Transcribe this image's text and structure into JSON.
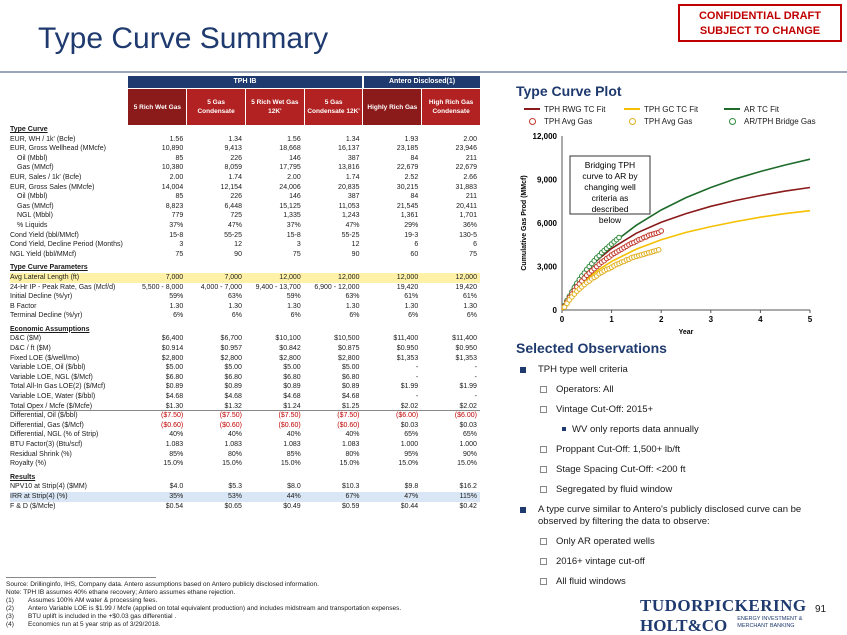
{
  "title": "Type Curve Summary",
  "confidential": [
    "CONFIDENTIAL DRAFT",
    "SUBJECT TO CHANGE"
  ],
  "table": {
    "group_headers": [
      "TPH IB",
      "Antero Disclosed(1)"
    ],
    "columns": [
      "5 Rich Wet Gas",
      "5 Gas Condensate",
      "5 Rich Wet Gas 12K'",
      "5 Gas Condensate 12K'",
      "Highly Rich Gas",
      "High Rich Gas Condensate"
    ],
    "sections": [
      {
        "name": "Type Curve",
        "rows": [
          {
            "label": "EUR, WH / 1k' (Bcfe)",
            "values": [
              "1.56",
              "1.34",
              "1.56",
              "1.34",
              "1.93",
              "2.00"
            ]
          },
          {
            "label": "EUR, Gross Wellhead (MMcfe)",
            "values": [
              "10,890",
              "9,413",
              "18,668",
              "16,137",
              "23,185",
              "23,946"
            ]
          },
          {
            "label": "Oil (Mbbl)",
            "indent": true,
            "values": [
              "85",
              "226",
              "146",
              "387",
              "84",
              "211"
            ]
          },
          {
            "label": "Gas (MMcf)",
            "indent": true,
            "values": [
              "10,380",
              "8,059",
              "17,795",
              "13,816",
              "22,679",
              "22,679"
            ]
          },
          {
            "label": "EUR, Sales / 1k' (Bcfe)",
            "values": [
              "2.00",
              "1.74",
              "2.00",
              "1.74",
              "2.52",
              "2.66"
            ]
          },
          {
            "label": "EUR, Gross Sales (MMcfe)",
            "values": [
              "14,004",
              "12,154",
              "24,006",
              "20,835",
              "30,215",
              "31,883"
            ]
          },
          {
            "label": "Oil (Mbbl)",
            "indent": true,
            "values": [
              "85",
              "226",
              "146",
              "387",
              "84",
              "211"
            ]
          },
          {
            "label": "Gas (MMcf)",
            "indent": true,
            "values": [
              "8,823",
              "6,448",
              "15,125",
              "11,053",
              "21,545",
              "20,411"
            ]
          },
          {
            "label": "NGL (Mbbl)",
            "indent": true,
            "values": [
              "779",
              "725",
              "1,335",
              "1,243",
              "1,361",
              "1,701"
            ]
          },
          {
            "label": "% Liquids",
            "indent": true,
            "values": [
              "37%",
              "47%",
              "37%",
              "47%",
              "29%",
              "36%"
            ]
          },
          {
            "label": "Cond Yield (bbl/MMcf)",
            "values": [
              "15-8",
              "55-25",
              "15-8",
              "55-25",
              "19-3",
              "130-5"
            ]
          },
          {
            "label": "Cond Yield, Decline Period (Months)",
            "values": [
              "3",
              "12",
              "3",
              "12",
              "6",
              "6"
            ]
          },
          {
            "label": "NGL Yield (bbl/MMcf)",
            "values": [
              "75",
              "90",
              "75",
              "90",
              "60",
              "75"
            ]
          }
        ]
      },
      {
        "name": "Type Curve Parameters",
        "rows": [
          {
            "label": "Avg Lateral Length (ft)",
            "highlight": "yellow",
            "values": [
              "7,000",
              "7,000",
              "12,000",
              "12,000",
              "12,000",
              "12,000"
            ]
          },
          {
            "label": "24-Hr IP - Peak Rate, Gas (Mcf/d)",
            "values": [
              "5,500 - 8,000",
              "4,000 - 7,000",
              "9,400 - 13,700",
              "6,900 - 12,000",
              "19,420",
              "19,420"
            ]
          },
          {
            "label": "Initial Decline (%/yr)",
            "values": [
              "59%",
              "63%",
              "59%",
              "63%",
              "61%",
              "61%"
            ]
          },
          {
            "label": "B Factor",
            "values": [
              "1.30",
              "1.30",
              "1.30",
              "1.30",
              "1.30",
              "1.30"
            ]
          },
          {
            "label": "Terminal Decline (%/yr)",
            "values": [
              "6%",
              "6%",
              "6%",
              "6%",
              "6%",
              "6%"
            ]
          }
        ]
      },
      {
        "name": "Economic Assumptions",
        "rows": [
          {
            "label": "D&C ($M)",
            "values": [
              "$6,400",
              "$6,700",
              "$10,100",
              "$10,500",
              "$11,400",
              "$11,400"
            ]
          },
          {
            "label": "D&C / ft ($M)",
            "values": [
              "$0.914",
              "$0.957",
              "$0.842",
              "$0.875",
              "$0.950",
              "$0.950"
            ]
          },
          {
            "label": "Fixed LOE ($/well/mo)",
            "values": [
              "$2,800",
              "$2,800",
              "$2,800",
              "$2,800",
              "$1,353",
              "$1,353"
            ]
          },
          {
            "label": "Variable LOE, Oil ($/bbl)",
            "values": [
              "$5.00",
              "$5.00",
              "$5.00",
              "$5.00",
              "-",
              "-"
            ]
          },
          {
            "label": "Variable LOE, NGL ($/Mcf)",
            "values": [
              "$6.80",
              "$6.80",
              "$6.80",
              "$6.80",
              "-",
              "-"
            ]
          },
          {
            "label": "Total All-In Gas LOE(2) ($/Mcf)",
            "values": [
              "$0.89",
              "$0.89",
              "$0.89",
              "$0.89",
              "$1.99",
              "$1.99"
            ]
          },
          {
            "label": "Variable LOE, Water ($/bbl)",
            "values": [
              "$4.68",
              "$4.68",
              "$4.68",
              "$4.68",
              "-",
              "-"
            ]
          },
          {
            "label": "Total Opex / Mcfe ($/Mcfe)",
            "underline": true,
            "values": [
              "$1.30",
              "$1.32",
              "$1.24",
              "$1.25",
              "$2.02",
              "$2.02"
            ]
          },
          {
            "label": "Differential, Oil ($/bbl)",
            "red": true,
            "values": [
              "($7.50)",
              "($7.50)",
              "($7.50)",
              "($7.50)",
              "($6.00)",
              "($6.00)"
            ]
          },
          {
            "label": "Differential, Gas ($/Mcf)",
            "red": true,
            "values": [
              "($0.60)",
              "($0.60)",
              "($0.60)",
              "($0.60)",
              "$0.03",
              "$0.03"
            ]
          },
          {
            "label": "Differential, NGL (% of Strip)",
            "values": [
              "40%",
              "40%",
              "40%",
              "40%",
              "65%",
              "65%"
            ]
          },
          {
            "label": "BTU Factor(3) (Btu/scf)",
            "values": [
              "1.083",
              "1.083",
              "1.083",
              "1.083",
              "1.000",
              "1.000"
            ]
          },
          {
            "label": "Residual Shrink (%)",
            "values": [
              "85%",
              "80%",
              "85%",
              "80%",
              "95%",
              "90%"
            ]
          },
          {
            "label": "Royalty (%)",
            "values": [
              "15.0%",
              "15.0%",
              "15.0%",
              "15.0%",
              "15.0%",
              "15.0%"
            ]
          }
        ]
      },
      {
        "name": "Results",
        "rows": [
          {
            "label": "NPV10 at Strip(4) ($MM)",
            "values": [
              "$4.0",
              "$5.3",
              "$8.0",
              "$10.3",
              "$9.8",
              "$16.2"
            ]
          },
          {
            "label": "IRR at Strip(4) (%)",
            "highlight": "blue",
            "values": [
              "35%",
              "53%",
              "44%",
              "67%",
              "47%",
              "115%"
            ]
          },
          {
            "label": "F & D ($/Mcfe)",
            "values": [
              "$0.54",
              "$0.65",
              "$0.49",
              "$0.59",
              "$0.44",
              "$0.42"
            ]
          }
        ]
      }
    ]
  },
  "plot": {
    "title": "Type Curve Plot",
    "legend": [
      {
        "label": "TPH RWG TC Fit",
        "kind": "line",
        "color": "#8b1a1a"
      },
      {
        "label": "TPH GC TC Fit",
        "kind": "line",
        "color": "#f5c000"
      },
      {
        "label": "AR TC Fit",
        "kind": "line",
        "color": "#1e6b2a"
      },
      {
        "label": "TPH Avg Gas",
        "kind": "dot",
        "color": "#c0392b"
      },
      {
        "label": "TPH Avg Gas",
        "kind": "dot",
        "color": "#e0b020"
      },
      {
        "label": "AR/TPH Bridge Gas",
        "kind": "dot",
        "color": "#2e8b3a"
      }
    ],
    "annotation": "Bridging TPH curve to AR by changing well criteria as described below"
  },
  "chart_data": {
    "type": "line",
    "xlabel": "Year",
    "ylabel": "Cumulative Gas Prod (MMcf)",
    "xlim": [
      0,
      5
    ],
    "ylim": [
      0,
      12000
    ],
    "xticks": [
      "0",
      "1",
      "2",
      "3",
      "4",
      "5"
    ],
    "yticks": [
      "0",
      "3,000",
      "6,000",
      "9,000",
      "12,000"
    ],
    "series": [
      {
        "name": "AR TC Fit",
        "color": "#1e6b2a",
        "kind": "line",
        "x": [
          0,
          0.25,
          0.5,
          0.75,
          1,
          1.5,
          2,
          2.5,
          3,
          3.5,
          4,
          4.5,
          5
        ],
        "y": [
          0,
          1750,
          2850,
          3750,
          4550,
          5850,
          6900,
          7750,
          8450,
          9050,
          9550,
          10000,
          10400
        ]
      },
      {
        "name": "TPH RWG TC Fit",
        "color": "#8b1a1a",
        "kind": "line",
        "x": [
          0,
          0.25,
          0.5,
          0.75,
          1,
          1.5,
          2,
          2.5,
          3,
          3.5,
          4,
          4.5,
          5
        ],
        "y": [
          0,
          1700,
          2750,
          3550,
          4250,
          5300,
          6050,
          6650,
          7150,
          7550,
          7900,
          8200,
          8450
        ]
      },
      {
        "name": "TPH GC TC Fit",
        "color": "#f5c000",
        "kind": "line",
        "x": [
          0,
          0.25,
          0.5,
          0.75,
          1,
          1.5,
          2,
          2.5,
          3,
          3.5,
          4,
          4.5,
          5
        ],
        "y": [
          0,
          1350,
          2150,
          2800,
          3350,
          4200,
          4850,
          5350,
          5750,
          6100,
          6400,
          6650,
          6850
        ]
      },
      {
        "name": "AR/TPH Bridge Gas",
        "color": "#2e8b3a",
        "kind": "dots",
        "x": [
          0.05,
          0.1,
          0.15,
          0.2,
          0.25,
          0.3,
          0.35,
          0.4,
          0.45,
          0.5,
          0.55,
          0.6,
          0.65,
          0.7,
          0.75,
          0.8,
          0.85,
          0.9,
          0.95,
          1.0,
          1.05,
          1.1,
          1.15
        ],
        "y": [
          300,
          650,
          950,
          1250,
          1550,
          1850,
          2100,
          2350,
          2550,
          2800,
          3000,
          3200,
          3400,
          3600,
          3750,
          3950,
          4100,
          4250,
          4400,
          4550,
          4700,
          4850,
          5000
        ]
      },
      {
        "name": "TPH Avg Gas",
        "color": "#c0392b",
        "kind": "dots",
        "x": [
          0.05,
          0.1,
          0.15,
          0.2,
          0.25,
          0.3,
          0.35,
          0.4,
          0.45,
          0.5,
          0.55,
          0.6,
          0.65,
          0.7,
          0.75,
          0.8,
          0.85,
          0.9,
          0.95,
          1.0,
          1.05,
          1.1,
          1.15,
          1.2,
          1.25,
          1.3,
          1.35,
          1.4,
          1.45,
          1.5,
          1.55,
          1.6,
          1.65,
          1.7,
          1.75,
          1.8,
          1.85,
          1.9,
          1.95,
          2.0
        ],
        "y": [
          250,
          550,
          850,
          1100,
          1350,
          1600,
          1800,
          2000,
          2200,
          2400,
          2550,
          2700,
          2850,
          3000,
          3150,
          3300,
          3400,
          3550,
          3650,
          3800,
          3900,
          4000,
          4100,
          4200,
          4300,
          4400,
          4500,
          4600,
          4650,
          4750,
          4850,
          4900,
          5000,
          5050,
          5150,
          5200,
          5250,
          5300,
          5350,
          5450
        ]
      },
      {
        "name": "TPH Avg Gas",
        "color": "#e0b020",
        "kind": "dots",
        "x": [
          0.05,
          0.1,
          0.15,
          0.2,
          0.25,
          0.3,
          0.35,
          0.4,
          0.45,
          0.5,
          0.55,
          0.6,
          0.65,
          0.7,
          0.75,
          0.8,
          0.85,
          0.9,
          0.95,
          1.0,
          1.05,
          1.1,
          1.15,
          1.2,
          1.25,
          1.3,
          1.35,
          1.4,
          1.45,
          1.5,
          1.55,
          1.6,
          1.65,
          1.7,
          1.75,
          1.8,
          1.85,
          1.9,
          1.95
        ],
        "y": [
          200,
          450,
          700,
          900,
          1100,
          1300,
          1450,
          1600,
          1750,
          1900,
          2000,
          2150,
          2250,
          2350,
          2500,
          2600,
          2700,
          2800,
          2850,
          2950,
          3050,
          3150,
          3200,
          3300,
          3350,
          3450,
          3500,
          3600,
          3650,
          3700,
          3750,
          3800,
          3850,
          3900,
          3950,
          4000,
          4050,
          4100,
          4150
        ]
      }
    ]
  },
  "observations": {
    "title": "Selected Observations",
    "items": [
      {
        "level": 1,
        "text": "TPH type well criteria"
      },
      {
        "level": 2,
        "text": "Operators: All"
      },
      {
        "level": 2,
        "text": "Vintage Cut-Off: 2015+"
      },
      {
        "level": 3,
        "text": "WV only reports data annually"
      },
      {
        "level": 2,
        "text": "Proppant Cut-Off: 1,500+ lb/ft"
      },
      {
        "level": 2,
        "text": "Stage Spacing Cut-Off: <200 ft"
      },
      {
        "level": 2,
        "text": "Segregated by fluid window"
      },
      {
        "level": 1,
        "text": "A type curve similar to Antero's publicly disclosed curve can be observed by filtering the data to observe:"
      },
      {
        "level": 2,
        "text": "Only AR operated wells"
      },
      {
        "level": 2,
        "text": "2016+ vintage cut-off"
      },
      {
        "level": 2,
        "text": "All fluid windows"
      }
    ]
  },
  "footnotes": [
    {
      "k": "",
      "t": "Source: Drillinginfo, IHS, Company data. Antero assumptions based on Antero publicly disclosed information."
    },
    {
      "k": "",
      "t": "Note: TPH IB assumes 40% ethane recovery; Antero assumes ethane rejection."
    },
    {
      "k": "(1)",
      "t": "Assumes 100% AM water & processing fees."
    },
    {
      "k": "(2)",
      "t": "Antero Variable LOE is $1.99 / Mcfe (applied on total equivalent production) and includes midstream and transportation expenses."
    },
    {
      "k": "(3)",
      "t": "BTU uplift is included in the +$0.03 gas differential ."
    },
    {
      "k": "(4)",
      "t": "Economics run at 5 year strip as of 3/29/2018."
    }
  ],
  "logo": {
    "line1": "TUDORPICKERING",
    "line2": "HOLT&CO",
    "tag1": "ENERGY INVESTMENT &",
    "tag2": "MERCHANT BANKING"
  },
  "page_number": "91"
}
